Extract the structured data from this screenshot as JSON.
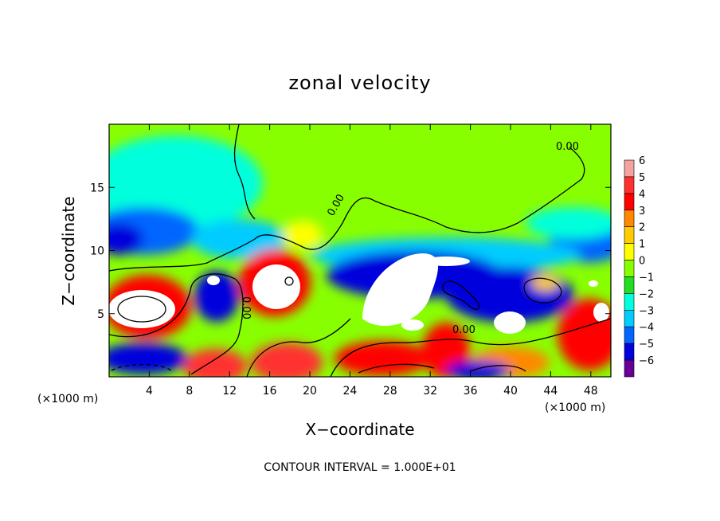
{
  "chart_data": {
    "type": "heatmap",
    "title": "zonal velocity",
    "xlabel": "X−coordinate",
    "ylabel": "Z−coordinate",
    "x_unit": "(×1000 m)",
    "y_unit": "(×1000 m)",
    "xlim": [
      0,
      50
    ],
    "ylim": [
      0,
      20
    ],
    "x_ticks": [
      4,
      8,
      12,
      16,
      20,
      24,
      28,
      32,
      36,
      40,
      44,
      48
    ],
    "x_tick_labels": [
      "4",
      "8",
      "12",
      "16",
      "20",
      "24",
      "28",
      "32",
      "36",
      "40",
      "44",
      "48"
    ],
    "y_ticks": [
      5,
      10,
      15
    ],
    "y_tick_labels": [
      "5",
      "10",
      "15"
    ],
    "colorbar": {
      "range": [
        -6,
        6
      ],
      "levels": [
        6,
        5,
        4,
        3,
        2,
        1,
        0,
        -1,
        -2,
        -3,
        -4,
        -5,
        -6
      ],
      "level_labels": [
        "6",
        "5",
        "4",
        "3",
        "2",
        "1",
        "0",
        "−1",
        "−2",
        "−3",
        "−4",
        "−5",
        "−6"
      ],
      "colors": [
        "#f4a3a3",
        "#ff3030",
        "#ff0000",
        "#ff8800",
        "#ffcc00",
        "#ffff00",
        "#88ff00",
        "#22dd22",
        "#00ffdd",
        "#00ccff",
        "#0066ff",
        "#0000dd",
        "#660099"
      ],
      "over_color": "#ffffff"
    },
    "contour_label": "0.00",
    "footer": "CONTOUR INTERVAL = 1.000E+01"
  }
}
